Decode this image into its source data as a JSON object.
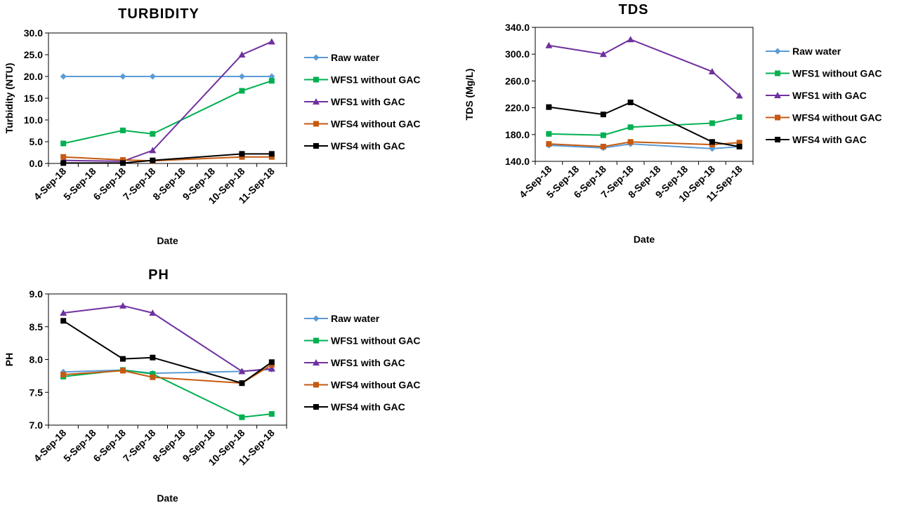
{
  "chart_data": [
    {
      "type": "line",
      "title": "TURBIDITY",
      "xlabel": "Date",
      "ylabel": "Turbidity (NTU)",
      "categories": [
        "4-Sep-18",
        "5-Sep-18",
        "6-Sep-18",
        "7-Sep-18",
        "8-Sep-18",
        "9-Sep-18",
        "10-Sep-18",
        "11-Sep-18"
      ],
      "ylim": [
        0,
        30
      ],
      "yticks": [
        "0.0",
        "5.0",
        "10.0",
        "15.0",
        "20.0",
        "25.0",
        "30.0"
      ],
      "legend": "right",
      "series": [
        {
          "name": "Raw water",
          "x": [
            0,
            2,
            3,
            6,
            7
          ],
          "values": [
            20,
            20,
            20,
            20,
            20
          ],
          "color": "#5b9bd5",
          "marker": "diamond"
        },
        {
          "name": "WFS1 without GAC",
          "x": [
            0,
            2,
            3,
            6,
            7
          ],
          "values": [
            4.6,
            7.6,
            6.8,
            16.7,
            19.0
          ],
          "color": "#00b050",
          "marker": "square"
        },
        {
          "name": "WFS1 with GAC",
          "x": [
            0,
            2,
            3,
            6,
            7
          ],
          "values": [
            0.7,
            0.5,
            3.0,
            25.0,
            28.0
          ],
          "color": "#7030a0",
          "marker": "triangle"
        },
        {
          "name": "WFS4 without GAC",
          "x": [
            0,
            2,
            3,
            6,
            7
          ],
          "values": [
            1.5,
            0.8,
            0.6,
            1.5,
            1.5
          ],
          "color": "#c55a11",
          "marker": "square"
        },
        {
          "name": "WFS4 with GAC",
          "x": [
            0,
            2,
            3,
            6,
            7
          ],
          "values": [
            0.1,
            0.1,
            0.7,
            2.2,
            2.2
          ],
          "color": "#000000",
          "marker": "square"
        }
      ]
    },
    {
      "type": "line",
      "title": "TDS",
      "xlabel": "Date",
      "ylabel": "TDS (Mg/L)",
      "categories": [
        "4-Sep-18",
        "5-Sep-18",
        "6-Sep-18",
        "7-Sep-18",
        "8-Sep-18",
        "9-Sep-18",
        "10-Sep-18",
        "11-Sep-18"
      ],
      "ylim": [
        140,
        340
      ],
      "yticks": [
        "140.0",
        "180.0",
        "220.0",
        "260.0",
        "300.0",
        "340.0"
      ],
      "legend": "right",
      "series": [
        {
          "name": "Raw water",
          "x": [
            0,
            2,
            3,
            6,
            7
          ],
          "values": [
            164,
            160,
            166,
            159,
            162
          ],
          "color": "#5b9bd5",
          "marker": "diamond"
        },
        {
          "name": "WFS1 without GAC",
          "x": [
            0,
            2,
            3,
            6,
            7
          ],
          "values": [
            181,
            179,
            191,
            197,
            206
          ],
          "color": "#00b050",
          "marker": "square"
        },
        {
          "name": "WFS1 with GAC",
          "x": [
            0,
            2,
            3,
            6,
            7
          ],
          "values": [
            313,
            300,
            322,
            274,
            238
          ],
          "color": "#7030a0",
          "marker": "triangle"
        },
        {
          "name": "WFS4 without GAC",
          "x": [
            0,
            2,
            3,
            6,
            7
          ],
          "values": [
            166,
            162,
            169,
            165,
            168
          ],
          "color": "#c55a11",
          "marker": "square"
        },
        {
          "name": "WFS4 with GAC",
          "x": [
            0,
            2,
            3,
            6,
            7
          ],
          "values": [
            221,
            210,
            228,
            169,
            162
          ],
          "color": "#000000",
          "marker": "square"
        }
      ]
    },
    {
      "type": "line",
      "title": "PH",
      "xlabel": "Date",
      "ylabel": "PH",
      "categories": [
        "4-Sep-18",
        "5-Sep-18",
        "6-Sep-18",
        "7-Sep-18",
        "8-Sep-18",
        "9-Sep-18",
        "10-Sep-18",
        "11-Sep-18"
      ],
      "ylim": [
        7.0,
        9.0
      ],
      "yticks": [
        "7.0",
        "7.5",
        "8.0",
        "8.5",
        "9.0"
      ],
      "legend": "right",
      "series": [
        {
          "name": "Raw water",
          "x": [
            0,
            2,
            3,
            6,
            7
          ],
          "values": [
            7.81,
            7.84,
            7.79,
            7.82,
            7.85
          ],
          "color": "#5b9bd5",
          "marker": "diamond"
        },
        {
          "name": "WFS1 without GAC",
          "x": [
            0,
            2,
            3,
            6,
            7
          ],
          "values": [
            7.74,
            7.84,
            7.78,
            7.12,
            7.17
          ],
          "color": "#00b050",
          "marker": "square"
        },
        {
          "name": "WFS1 with GAC",
          "x": [
            0,
            2,
            3,
            6,
            7
          ],
          "values": [
            8.71,
            8.82,
            8.71,
            7.82,
            7.86
          ],
          "color": "#7030a0",
          "marker": "triangle"
        },
        {
          "name": "WFS4 without GAC",
          "x": [
            0,
            2,
            3,
            6,
            7
          ],
          "values": [
            7.77,
            7.83,
            7.73,
            7.64,
            7.92
          ],
          "color": "#c55a11",
          "marker": "square"
        },
        {
          "name": "WFS4 with GAC",
          "x": [
            0,
            2,
            3,
            6,
            7
          ],
          "values": [
            8.59,
            8.01,
            8.03,
            7.64,
            7.96
          ],
          "color": "#000000",
          "marker": "square"
        }
      ]
    }
  ]
}
